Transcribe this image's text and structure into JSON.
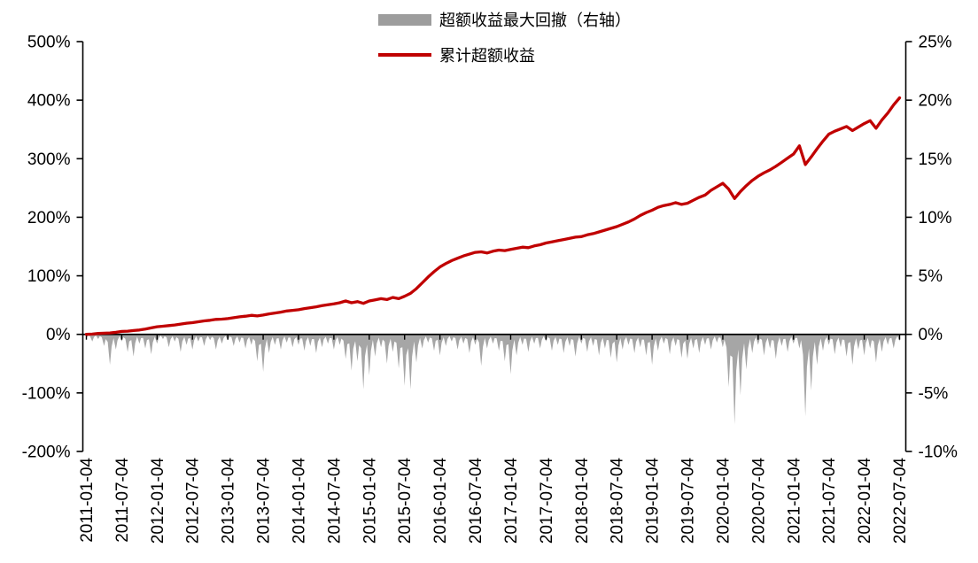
{
  "chart_data": {
    "type": "line",
    "title": "",
    "background_color": "#ffffff",
    "grid": "off",
    "legend_position": "top-center",
    "legend": [
      {
        "label": "超额收益最大回撤（右轴）",
        "swatch": "bar",
        "color": "#9d9d9d"
      },
      {
        "label": "累计超额收益",
        "swatch": "line",
        "color": "#c00000"
      }
    ],
    "left_axis": {
      "ticks": [
        "500%",
        "400%",
        "300%",
        "200%",
        "100%",
        "0%",
        "-100%",
        "-200%"
      ],
      "values": [
        500,
        400,
        300,
        200,
        100,
        0,
        -100,
        -200
      ],
      "max": 500,
      "min": -200
    },
    "right_axis": {
      "ticks": [
        "25%",
        "20%",
        "15%",
        "10%",
        "5%",
        "0%",
        "-5%",
        "-10%"
      ],
      "values": [
        25,
        20,
        15,
        10,
        5,
        0,
        -5,
        -10
      ],
      "max": 25,
      "min": -10
    },
    "x_tick_labels": [
      "2011-01-04",
      "2011-07-04",
      "2012-01-04",
      "2012-07-04",
      "2013-01-04",
      "2013-07-04",
      "2014-01-04",
      "2014-07-04",
      "2015-01-04",
      "2015-07-04",
      "2016-01-04",
      "2016-07-04",
      "2017-01-04",
      "2017-07-04",
      "2018-01-04",
      "2018-07-04",
      "2019-01-04",
      "2019-07-04",
      "2020-01-04",
      "2020-07-04",
      "2021-01-04",
      "2021-07-04",
      "2022-01-04",
      "2022-07-04"
    ],
    "x_tick_step_months": 6,
    "x_start": "2011-01",
    "x_end": "2022-07",
    "series": [
      {
        "name": "累计超额收益",
        "axis": "left",
        "type": "line",
        "color": "#c00000",
        "unit": "%",
        "sampling": "monthly",
        "values": [
          0,
          0.5,
          1.5,
          2,
          2.5,
          3.5,
          5,
          5.5,
          6.5,
          7.5,
          9,
          11,
          13,
          14,
          15,
          16,
          17.5,
          19,
          20,
          21.5,
          23,
          24,
          25.5,
          26,
          27,
          28.5,
          30,
          31,
          32.5,
          31.5,
          33,
          35,
          36.5,
          38,
          40,
          41,
          42,
          44,
          45.5,
          47,
          49,
          50.5,
          52,
          54,
          57,
          54,
          56,
          53,
          57,
          59,
          61,
          59.5,
          63,
          61,
          65,
          70,
          78,
          88,
          98,
          107,
          115,
          121,
          126,
          130,
          134,
          137,
          140,
          141,
          139,
          142,
          144,
          143,
          145,
          147,
          149,
          148,
          151,
          153,
          156,
          158,
          160,
          162,
          164,
          166,
          167,
          170,
          172,
          175,
          178,
          181,
          184,
          188,
          192,
          197,
          203,
          208,
          212,
          217,
          220,
          222,
          225,
          222,
          224,
          229,
          234,
          238,
          246,
          252,
          258,
          248,
          232,
          244,
          254,
          263,
          270,
          276,
          281,
          287,
          294,
          301,
          308,
          322,
          290,
          303,
          317,
          330,
          342,
          347,
          351,
          355,
          348,
          354,
          360,
          365,
          352,
          366,
          378,
          392,
          404
        ]
      },
      {
        "name": "超额收益最大回撤（右轴）",
        "axis": "right",
        "type": "area",
        "color": "#a6a6a6",
        "unit": "%",
        "sampling": "monthly",
        "values": [
          -0.3,
          -0.6,
          -0.4,
          -1,
          -2.6,
          -1.3,
          -0.6,
          -1.5,
          -1.9,
          -0.8,
          -1.2,
          -1.7,
          -0.8,
          -0.4,
          -1.1,
          -0.6,
          -1.5,
          -0.9,
          -1.3,
          -0.6,
          -1,
          -0.5,
          -1.3,
          -0.8,
          -0.5,
          -1,
          -0.7,
          -1.2,
          -0.9,
          -2.3,
          -3.2,
          -1.6,
          -0.9,
          -1.3,
          -0.7,
          -1.1,
          -0.9,
          -1.4,
          -1,
          -1.6,
          -1.1,
          -0.8,
          -1.3,
          -0.9,
          -2.1,
          -3.1,
          -2.3,
          -4.7,
          -3.5,
          -1.9,
          -1.1,
          -2.5,
          -1.5,
          -2.9,
          -4.4,
          -4.7,
          -2.4,
          -1.2,
          -0.7,
          -1.4,
          -1.8,
          -1,
          -0.6,
          -1.3,
          -0.8,
          -1.6,
          -0.9,
          -2.7,
          -1.2,
          -0.8,
          -1.4,
          -2.3,
          -3.4,
          -1.8,
          -0.9,
          -1.5,
          -0.8,
          -1.2,
          -0.6,
          -1.4,
          -0.9,
          -1.6,
          -1,
          -1.9,
          -0.8,
          -1.5,
          -1,
          -1.8,
          -1.2,
          -2,
          -2.4,
          -1.3,
          -0.9,
          -1.6,
          -1.1,
          -1.8,
          -2.6,
          -1.4,
          -0.8,
          -1.7,
          -1,
          -2,
          -2.1,
          -1.2,
          -1.6,
          -0.9,
          -1.3,
          -0.7,
          -1.1,
          -4.5,
          -7.7,
          -5.2,
          -3,
          -1.6,
          -0.9,
          -1.8,
          -1.2,
          -2.1,
          -1,
          -1.5,
          -0.8,
          -1.2,
          -7,
          -4.8,
          -2.6,
          -1.4,
          -0.9,
          -1.7,
          -1.1,
          -1.9,
          -2.6,
          -1.3,
          -1.8,
          -1.2,
          -2.4,
          -1.5,
          -0.9,
          -1.2,
          -0.6
        ]
      }
    ]
  }
}
